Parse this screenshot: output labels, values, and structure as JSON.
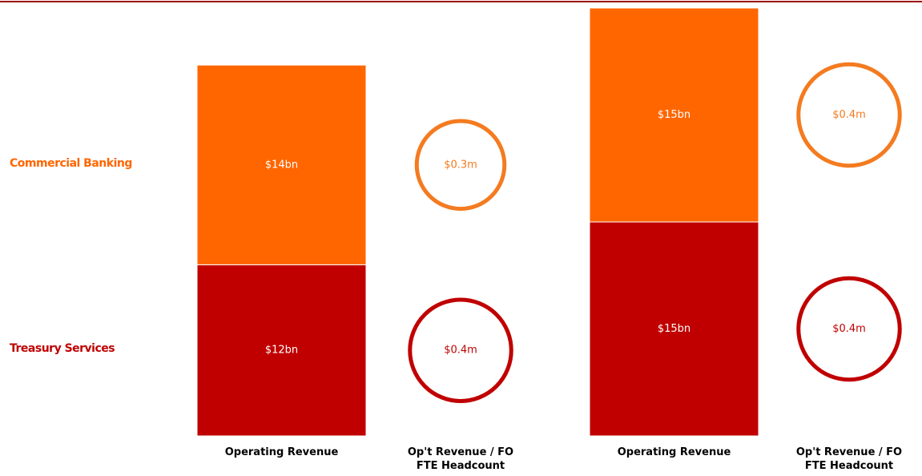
{
  "chart_data": [
    {
      "type": "bar",
      "stacked": true,
      "categories": [
        "Operating Revenue",
        "Operating Revenue"
      ],
      "series": [
        {
          "name": "Commercial Banking",
          "color": "#ff6600",
          "values": [
            14,
            15
          ],
          "value_labels": [
            "$14bn",
            "$15bn"
          ]
        },
        {
          "name": "Treasury Services",
          "color": "#c00000",
          "values": [
            12,
            15
          ],
          "value_labels": [
            "$12bn",
            "$15bn"
          ]
        }
      ]
    },
    {
      "type": "bubble",
      "categories": [
        "Op't Revenue / FO FTE Headcount",
        "Op't Revenue / FO FTE Headcount"
      ],
      "series": [
        {
          "color": "#f47b20",
          "values": [
            0.3,
            0.4
          ],
          "value_labels": [
            "$0.3m",
            "$0.4m"
          ]
        },
        {
          "color": "#c00000",
          "values": [
            0.4,
            0.4
          ],
          "value_labels": [
            "$0.4m",
            "$0.4m"
          ]
        }
      ]
    }
  ]
}
